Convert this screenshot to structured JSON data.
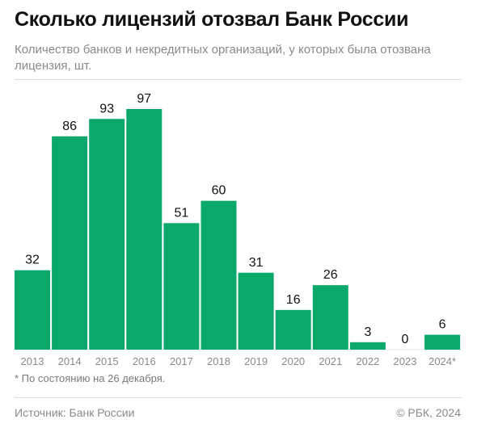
{
  "header": {
    "title": "Сколько лицензий отозвал Банк России",
    "subtitle": "Количество банков и некредитных организаций, у которых была отозвана лицензия, шт."
  },
  "footer": {
    "footnote": "* По состоянию на 26 декабря.",
    "source": "Источник: Банк России",
    "credit": "© РБК, 2024"
  },
  "colors": {
    "bar": "#0aa86a",
    "baseline": "#e3e3e3"
  },
  "chart_data": {
    "type": "bar",
    "categories": [
      "2013",
      "2014",
      "2015",
      "2016",
      "2017",
      "2018",
      "2019",
      "2020",
      "2021",
      "2022",
      "2023",
      "2024*"
    ],
    "values": [
      32,
      86,
      93,
      97,
      51,
      60,
      31,
      16,
      26,
      3,
      0,
      6
    ],
    "title": "Сколько лицензий отозвал Банк России",
    "subtitle": "Количество банков и некредитных организаций, у которых была отозвана лицензия, шт.",
    "ylim": [
      0,
      97
    ],
    "grid": false,
    "legend": "none"
  }
}
